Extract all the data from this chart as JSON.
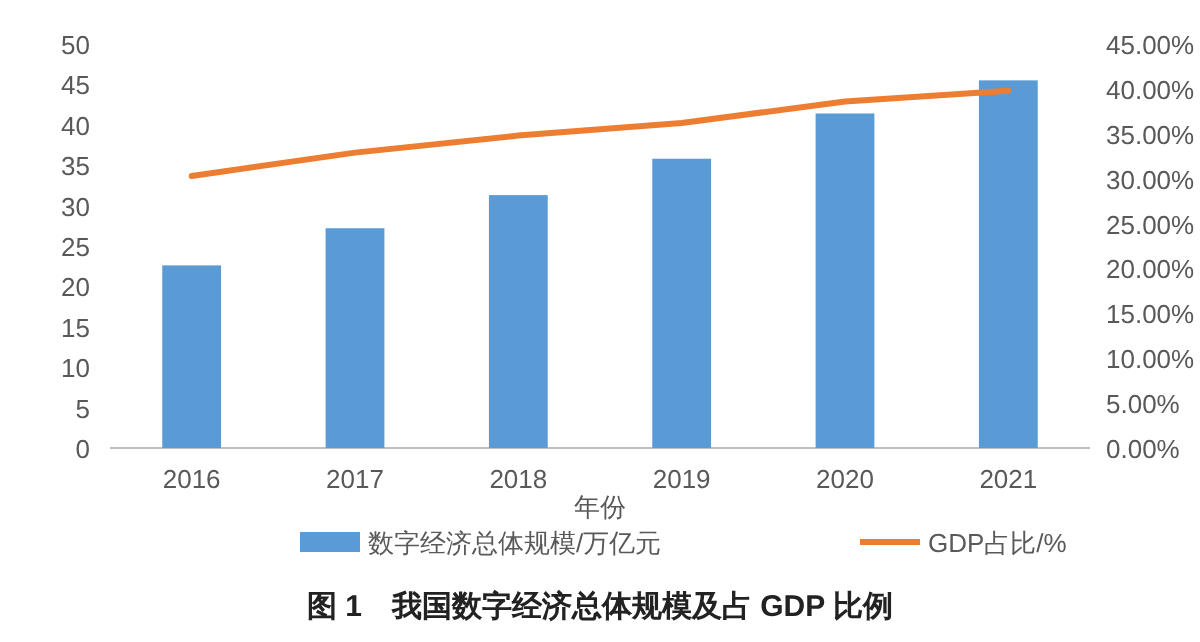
{
  "chart_data": {
    "type": "bar",
    "title": "图 1　我国数字经济总体规模及占 GDP 比例",
    "xlabel": "年份",
    "categories": [
      "2016",
      "2017",
      "2018",
      "2019",
      "2020",
      "2021"
    ],
    "series": [
      {
        "name": "数字经济总体规模/万亿元",
        "color": "#5b9bd5",
        "values": [
          22.6,
          27.2,
          31.3,
          35.8,
          41.4,
          45.5
        ]
      },
      {
        "name": "GDP占比/%",
        "type": "line",
        "axis": "y2",
        "color": "#ed7d31",
        "values": [
          30.3,
          32.9,
          34.8,
          36.2,
          38.6,
          39.8
        ]
      }
    ],
    "ylim": [
      0,
      50
    ],
    "yticks": [
      0,
      5,
      10,
      15,
      20,
      25,
      30,
      35,
      40,
      45,
      50
    ],
    "y2lim": [
      0,
      45
    ],
    "y2ticks": [
      {
        "value": 0,
        "label": "0.00%"
      },
      {
        "value": 5,
        "label": "5.00%"
      },
      {
        "value": 10,
        "label": "10.00%"
      },
      {
        "value": 15,
        "label": "15.00%"
      },
      {
        "value": 20,
        "label": "20.00%"
      },
      {
        "value": 25,
        "label": "25.00%"
      },
      {
        "value": 30,
        "label": "30.00%"
      },
      {
        "value": 35,
        "label": "35.00%"
      },
      {
        "value": 40,
        "label": "40.00%"
      },
      {
        "value": 45,
        "label": "45.00%"
      }
    ],
    "grid": false,
    "legend": "bottom",
    "marker": "none",
    "line_style": "solid"
  }
}
